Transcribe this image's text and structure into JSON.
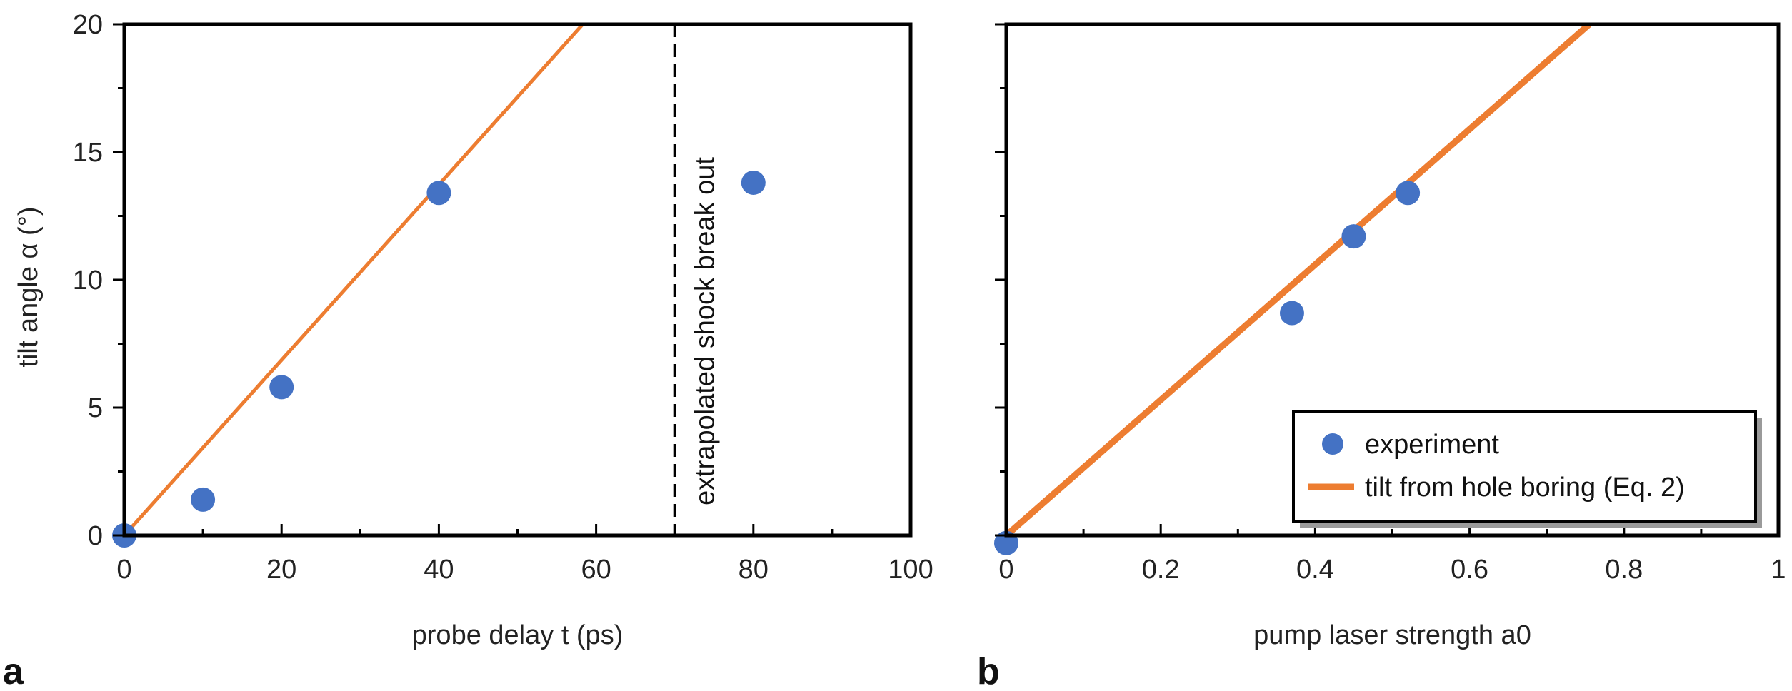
{
  "colors": {
    "experiment": "#4472C4",
    "model": "#ED7D31",
    "axis": "#000000"
  },
  "chart_data": [
    {
      "panel": "a",
      "type": "scatter",
      "title": "",
      "xlabel": "probe delay t (ps)",
      "ylabel": "tilt angle α (°)",
      "xlim": [
        0,
        100
      ],
      "ylim": [
        0,
        20
      ],
      "xticks": [
        0,
        20,
        40,
        60,
        80,
        100
      ],
      "yticks": [
        0,
        5,
        10,
        15,
        20
      ],
      "xtick_labels": [
        "0",
        "20",
        "40",
        "60",
        "80",
        "100"
      ],
      "ytick_labels": [
        "0",
        "5",
        "10",
        "15",
        "20"
      ],
      "series": [
        {
          "name": "experiment",
          "kind": "scatter",
          "x": [
            0,
            10,
            20,
            40,
            80
          ],
          "y": [
            0,
            1.4,
            5.8,
            13.4,
            13.8
          ]
        },
        {
          "name": "tilt from hole boring (Eq. 2)",
          "kind": "line",
          "x": [
            0,
            58.3
          ],
          "y": [
            0,
            20
          ]
        }
      ],
      "vline": {
        "x": 70,
        "label": "extrapolated shock break out"
      }
    },
    {
      "panel": "b",
      "type": "scatter",
      "title": "",
      "xlabel": "pump laser strength a0",
      "ylabel": "",
      "xlim": [
        0,
        1
      ],
      "ylim": [
        0,
        20
      ],
      "xticks": [
        0,
        0.2,
        0.4,
        0.6,
        0.8,
        1
      ],
      "yticks": [
        0,
        5,
        10,
        15,
        20
      ],
      "xtick_labels": [
        "0",
        "0.2",
        "0.4",
        "0.6",
        "0.8",
        "1"
      ],
      "ytick_labels": [],
      "series": [
        {
          "name": "experiment",
          "kind": "scatter",
          "x": [
            0,
            0.37,
            0.45,
            0.52
          ],
          "y": [
            -0.3,
            8.7,
            11.7,
            13.4
          ]
        },
        {
          "name": "tilt from hole boring (Eq. 2)",
          "kind": "line",
          "x": [
            0,
            0.755
          ],
          "y": [
            0,
            20
          ]
        }
      ],
      "legend": {
        "position": "bottom-right",
        "entries": [
          "experiment",
          "tilt from hole boring (Eq. 2)"
        ]
      }
    }
  ]
}
